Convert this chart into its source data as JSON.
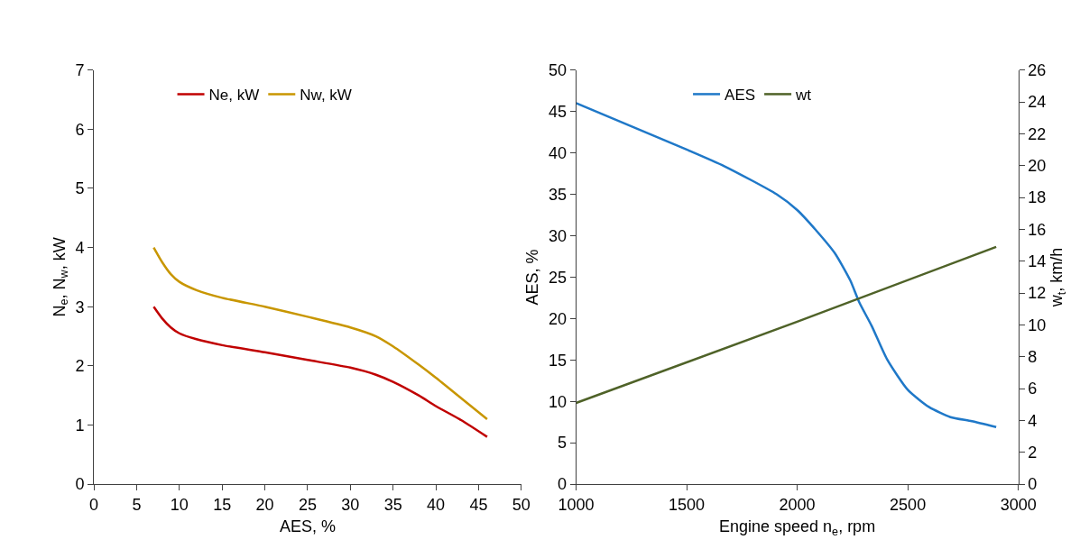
{
  "chart_data": [
    {
      "type": "line",
      "xlabel": "AES, %",
      "ylabel": "N$_{e}$, N$_{w}$, kW",
      "xlim": [
        0,
        50
      ],
      "xticks": [
        0,
        5,
        10,
        15,
        20,
        25,
        30,
        35,
        40,
        45,
        50
      ],
      "ylim": [
        0,
        7
      ],
      "yticks": [
        0,
        1,
        2,
        3,
        4,
        5,
        6,
        7
      ],
      "legend": "top",
      "series": [
        {
          "name": "Ne, kW",
          "color": "#c00000",
          "x": [
            7,
            8,
            9,
            10,
            12,
            15,
            20,
            25,
            30,
            33,
            35,
            38,
            40,
            43,
            46
          ],
          "values": [
            3.0,
            2.8,
            2.65,
            2.55,
            2.45,
            2.35,
            2.23,
            2.1,
            1.97,
            1.85,
            1.73,
            1.5,
            1.32,
            1.08,
            0.8
          ]
        },
        {
          "name": "Nw, kW",
          "color": "#c89600",
          "x": [
            7,
            8,
            9,
            10,
            12,
            15,
            20,
            25,
            30,
            33,
            35,
            38,
            40,
            43,
            46
          ],
          "values": [
            4.0,
            3.75,
            3.55,
            3.42,
            3.28,
            3.15,
            3.0,
            2.83,
            2.65,
            2.5,
            2.33,
            2.02,
            1.8,
            1.45,
            1.1
          ]
        }
      ]
    },
    {
      "type": "line",
      "xlabel": "Engine speed n$_{e}$, rpm",
      "ylabel": "AES, %",
      "y2label": "w$_{t}$, km/h",
      "xlim": [
        1000,
        3000
      ],
      "xticks": [
        1000,
        1500,
        2000,
        2500,
        3000
      ],
      "ylim": [
        0,
        50
      ],
      "yticks": [
        0,
        5,
        10,
        15,
        20,
        25,
        30,
        35,
        40,
        45,
        50
      ],
      "y2lim": [
        0,
        26
      ],
      "y2ticks": [
        0,
        2,
        4,
        6,
        8,
        10,
        12,
        14,
        16,
        18,
        20,
        22,
        24,
        26
      ],
      "legend": "top",
      "series": [
        {
          "name": "AES",
          "color": "#1f78c8",
          "x": [
            1000,
            1500,
            1670,
            1907,
            2000,
            2087,
            2170,
            2240,
            2280,
            2337,
            2406,
            2500,
            2597,
            2693,
            2790,
            2900
          ],
          "values": [
            46.0,
            40.4,
            38.4,
            35.0,
            33.1,
            30.6,
            27.9,
            24.6,
            22.0,
            19.1,
            15.1,
            11.4,
            9.3,
            8.1,
            7.6,
            6.9
          ]
        },
        {
          "name": "wt",
          "color": "#4f6228",
          "axis": "y2",
          "x": [
            1000,
            2000,
            2900
          ],
          "values": [
            5.1,
            10.2,
            14.9
          ]
        }
      ]
    }
  ]
}
